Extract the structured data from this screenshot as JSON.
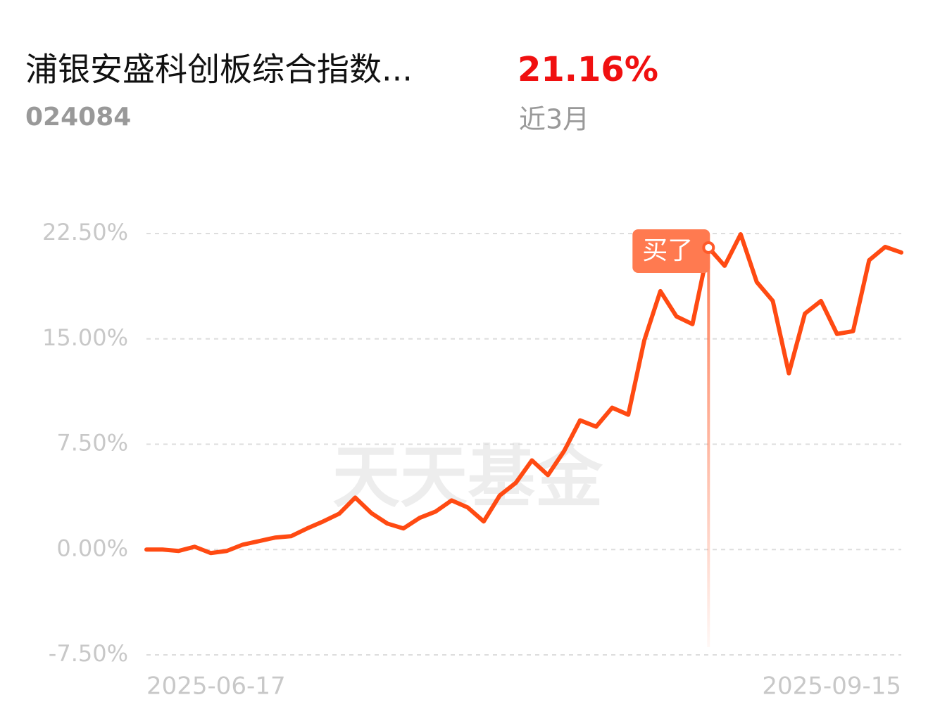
{
  "header": {
    "title": "浦银安盛科创板综合指数...",
    "code": "024084",
    "return": "21.16%",
    "period": "近3月"
  },
  "chart_data": {
    "type": "line",
    "categories": [
      "2025-06-17",
      null,
      null,
      null,
      null,
      null,
      null,
      null,
      null,
      null,
      null,
      null,
      null,
      null,
      null,
      null,
      null,
      null,
      null,
      null,
      null,
      null,
      null,
      null,
      null,
      null,
      null,
      null,
      null,
      null,
      null,
      null,
      null,
      null,
      null,
      null,
      null,
      null,
      null,
      null,
      null,
      null,
      null,
      null,
      null,
      null,
      null,
      "2025-09-15"
    ],
    "values": [
      0,
      0,
      -0.1,
      0.2,
      -0.25,
      -0.1,
      0.35,
      0.6,
      0.85,
      0.95,
      1.5,
      2.0,
      2.55,
      3.7,
      2.6,
      1.85,
      1.5,
      2.25,
      2.7,
      3.5,
      3.0,
      2.0,
      3.85,
      4.75,
      6.35,
      5.3,
      7.0,
      9.2,
      8.75,
      10.1,
      9.6,
      14.9,
      18.4,
      16.6,
      16.05,
      21.5,
      20.2,
      22.45,
      19.05,
      17.7,
      12.55,
      16.8,
      17.7,
      15.35,
      15.55,
      20.6,
      21.55,
      21.15
    ],
    "color": "#ff4a12",
    "ylim": [
      -7.5,
      22.5
    ],
    "yticks": [
      {
        "value": -7.5,
        "label": "-7.50%"
      },
      {
        "value": 0,
        "label": "0.00%"
      },
      {
        "value": 7.5,
        "label": "7.50%"
      },
      {
        "value": 15,
        "label": "15.00%"
      },
      {
        "value": 22.5,
        "label": "22.50%"
      }
    ],
    "grid": true,
    "annotation": {
      "text": "买了",
      "index": 35
    },
    "watermark": "天天基金"
  }
}
